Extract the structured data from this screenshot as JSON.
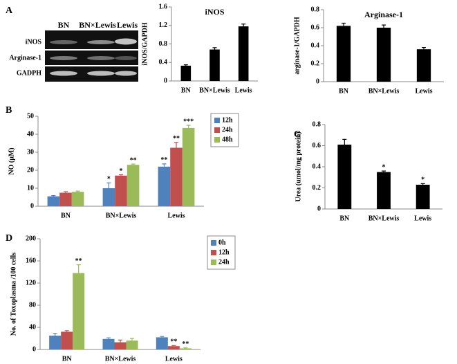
{
  "gel": {
    "panel": "A",
    "columns": [
      "BN",
      "BN×Lewis",
      "Lewis"
    ],
    "rows": [
      "iNOS",
      "Arginase-1",
      "GADPH"
    ]
  },
  "chart_data": [
    {
      "type": "bar",
      "title": "iNOS",
      "y_label": "iNOS/GAPDH",
      "categories": [
        "BN",
        "BN×Lewis",
        "Lewis"
      ],
      "values": [
        0.33,
        0.68,
        1.18
      ],
      "errors": [
        0.02,
        0.04,
        0.05
      ],
      "color": "#000000",
      "ylim": [
        0,
        1.6
      ],
      "yticks": [
        0,
        0.4,
        0.8,
        1.2,
        1.6
      ]
    },
    {
      "type": "bar",
      "title": "Arginase-1",
      "y_label": "arginase-1/GAPDH",
      "categories": [
        "BN",
        "BN×Lewis",
        "Lewis"
      ],
      "values": [
        0.62,
        0.6,
        0.36
      ],
      "errors": [
        0.03,
        0.03,
        0.02
      ],
      "color": "#000000",
      "ylim": [
        0,
        0.8
      ],
      "yticks": [
        0,
        0.2,
        0.4,
        0.6,
        0.8
      ]
    },
    {
      "type": "bar",
      "panel": "B",
      "y_label": "NO (μM)",
      "categories": [
        "BN",
        "BN×Lewis",
        "Lewis"
      ],
      "legend": "right",
      "ylim": [
        0,
        50
      ],
      "yticks": [
        0,
        10,
        20,
        30,
        40,
        50
      ],
      "series": [
        {
          "name": "12h",
          "color": "#4f81bd",
          "values": [
            5.5,
            10,
            22
          ],
          "errors": [
            0.4,
            3,
            1.5
          ],
          "significance": [
            null,
            "*",
            "**"
          ]
        },
        {
          "name": "24h",
          "color": "#c0504d",
          "values": [
            7.5,
            17,
            32.5
          ],
          "errors": [
            0.6,
            0.5,
            3
          ],
          "significance": [
            null,
            "*",
            "**"
          ]
        },
        {
          "name": "48h",
          "color": "#9bbb59",
          "values": [
            8,
            23,
            43.5
          ],
          "errors": [
            0.4,
            0.4,
            1.5
          ],
          "significance": [
            null,
            "**",
            "***"
          ]
        }
      ]
    },
    {
      "type": "bar",
      "panel": "C",
      "y_label": "Urea (umol/mg protein)",
      "categories": [
        "BN",
        "BN×Lewis",
        "Lewis"
      ],
      "values": [
        0.61,
        0.35,
        0.23
      ],
      "errors": [
        0.05,
        0.01,
        0.01
      ],
      "significance": [
        null,
        "*",
        "*"
      ],
      "color": "#000000",
      "ylim": [
        0,
        0.8
      ],
      "yticks": [
        0,
        0.2,
        0.4,
        0.6,
        0.8
      ]
    },
    {
      "type": "bar",
      "panel": "D",
      "y_label": "No. of Toxoplasma /100 cells",
      "categories": [
        "BN",
        "BN×Lewis",
        "Lewis"
      ],
      "legend": "right",
      "ylim": [
        0,
        200
      ],
      "yticks": [
        0,
        40,
        80,
        120,
        160,
        200
      ],
      "series": [
        {
          "name": "0h",
          "color": "#4f81bd",
          "values": [
            25,
            19,
            22
          ],
          "errors": [
            4,
            2,
            1.5
          ],
          "significance": [
            null,
            null,
            null
          ]
        },
        {
          "name": "12h",
          "color": "#c0504d",
          "values": [
            32,
            13,
            6
          ],
          "errors": [
            2,
            4,
            1
          ],
          "significance": [
            null,
            null,
            "**"
          ]
        },
        {
          "name": "24h",
          "color": "#9bbb59",
          "values": [
            138,
            16,
            2
          ],
          "errors": [
            15,
            4,
            1
          ],
          "significance": [
            "**",
            null,
            "**"
          ]
        }
      ]
    }
  ]
}
